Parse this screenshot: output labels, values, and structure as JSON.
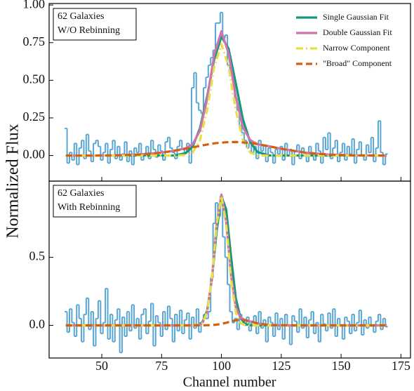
{
  "chart_data": [
    {
      "type": "line",
      "ylabel": "Normalized Flux",
      "annotation": [
        "62 Galaxies",
        "W/O Rebinning"
      ],
      "xlim": [
        28,
        179
      ],
      "ylim": [
        -0.17,
        1.01
      ],
      "xticks": [
        50,
        75,
        100,
        125,
        150,
        175
      ],
      "yticks": [
        {
          "value": 0,
          "label": "0.00"
        },
        0.25,
        {
          "value": 0.5,
          "label": "0.50"
        },
        0.75,
        {
          "value": 1,
          "label": "1.00"
        }
      ],
      "legend": "upper right",
      "histogram": {
        "color": "#5aa6d2",
        "x": [
          35,
          36,
          37,
          38,
          39,
          40,
          41,
          42,
          43,
          44,
          45,
          46,
          47,
          48,
          49,
          50,
          51,
          52,
          53,
          54,
          55,
          56,
          57,
          58,
          59,
          60,
          61,
          62,
          63,
          64,
          65,
          66,
          67,
          68,
          69,
          70,
          71,
          72,
          73,
          74,
          75,
          76,
          77,
          78,
          79,
          80,
          81,
          82,
          83,
          84,
          85,
          86,
          87,
          88,
          89,
          90,
          91,
          92,
          93,
          94,
          95,
          96,
          97,
          98,
          99,
          100,
          101,
          102,
          103,
          104,
          105,
          106,
          107,
          108,
          109,
          110,
          111,
          112,
          113,
          114,
          115,
          116,
          117,
          118,
          119,
          120,
          121,
          122,
          123,
          124,
          125,
          126,
          127,
          128,
          129,
          130,
          131,
          132,
          133,
          134,
          135,
          136,
          137,
          138,
          139,
          140,
          141,
          142,
          143,
          144,
          145,
          146,
          147,
          148,
          149,
          150,
          151,
          152,
          153,
          154,
          155,
          156,
          157,
          158,
          159,
          160,
          161,
          162,
          163,
          164,
          165,
          166,
          167,
          168,
          169
        ],
        "values": [
          0.18,
          -0.05,
          0.02,
          -0.03,
          0.08,
          -0.06,
          0.05,
          0.1,
          -0.02,
          0.14,
          0.03,
          -0.04,
          0.08,
          0.1,
          0.06,
          -0.03,
          0.02,
          0.08,
          -0.05,
          0.04,
          0.1,
          -0.02,
          0.06,
          -0.03,
          0.01,
          0.09,
          -0.04,
          0.03,
          -0.06,
          0.05,
          0.02,
          0.08,
          -0.03,
          0.0,
          0.06,
          -0.02,
          0.1,
          0.04,
          -0.01,
          0.07,
          0.03,
          -0.03,
          0.09,
          0.12,
          0.05,
          0.02,
          -0.02,
          0.06,
          0.1,
          0.04,
          0.02,
          0.08,
          -0.05,
          0.45,
          0.55,
          0.35,
          0.3,
          0.28,
          0.45,
          0.52,
          0.6,
          0.65,
          0.7,
          0.88,
          0.88,
          0.95,
          0.78,
          0.8,
          0.6,
          0.55,
          0.5,
          0.38,
          0.3,
          0.2,
          0.15,
          0.1,
          0.05,
          0.08,
          0.02,
          0.06,
          -0.02,
          0.1,
          0.03,
          0.07,
          -0.04,
          0.05,
          0.02,
          -0.05,
          0.04,
          0.01,
          0.06,
          -0.03,
          0.08,
          0.0,
          0.04,
          -0.06,
          0.03,
          0.07,
          -0.02,
          0.05,
          0.02,
          -0.04,
          0.06,
          0.01,
          -0.03,
          0.08,
          0.03,
          -0.05,
          0.12,
          0.04,
          0.15,
          -0.02,
          0.05,
          0.1,
          -0.04,
          0.02,
          0.08,
          -0.03,
          0.06,
          0.01,
          0.11,
          -0.05,
          0.04,
          0.09,
          0.0,
          -0.03,
          0.07,
          0.02,
          0.12,
          -0.04,
          0.05,
          0.23,
          0.02,
          -0.06,
          0.01
        ]
      },
      "x": [
        35,
        45,
        55,
        65,
        75,
        80,
        85,
        88,
        91,
        94,
        97,
        100,
        103,
        106,
        109,
        112,
        115,
        120,
        125,
        135,
        145,
        155,
        169
      ],
      "series": [
        {
          "name": "Single Gaussian Fit",
          "color": "#14997a",
          "style": "solid",
          "values": [
            0,
            0,
            0,
            0,
            0,
            0,
            0.015,
            0.06,
            0.18,
            0.39,
            0.64,
            0.79,
            0.71,
            0.48,
            0.24,
            0.09,
            0.024,
            0,
            0,
            0,
            0,
            0,
            0
          ]
        },
        {
          "name": "Double Gaussian Fit",
          "color": "#cf72b0",
          "style": "solid",
          "values": [
            0,
            0,
            0.001,
            0.006,
            0.019,
            0.031,
            0.048,
            0.075,
            0.164,
            0.373,
            0.671,
            0.826,
            0.679,
            0.39,
            0.187,
            0.103,
            0.076,
            0.061,
            0.045,
            0.019,
            0.006,
            0.001,
            0
          ]
        },
        {
          "name": "Narrow Component",
          "color": "#e6e045",
          "style": "dashdot",
          "values": [
            0,
            0,
            0,
            0,
            0,
            0,
            0.003,
            0.02,
            0.1,
            0.3,
            0.59,
            0.74,
            0.59,
            0.3,
            0.1,
            0.02,
            0,
            0,
            0,
            0,
            0,
            0,
            0
          ]
        },
        {
          "name": "\"Broad\" Component",
          "color": "#d5600c",
          "style": "dashed",
          "values": [
            0,
            0,
            0.001,
            0.006,
            0.019,
            0.031,
            0.045,
            0.055,
            0.064,
            0.073,
            0.081,
            0.086,
            0.089,
            0.09,
            0.087,
            0.083,
            0.076,
            0.061,
            0.045,
            0.019,
            0.006,
            0.001,
            0
          ]
        }
      ]
    },
    {
      "type": "line",
      "xlabel": "Channel number",
      "annotation": [
        "62 Galaxies",
        "With Rebinning"
      ],
      "xlim": [
        28,
        179
      ],
      "ylim": [
        -0.24,
        1.06
      ],
      "xticks": [
        50,
        75,
        100,
        125,
        150,
        175
      ],
      "yticks": [
        {
          "value": 0,
          "label": "0.0"
        },
        0.5
      ],
      "histogram": {
        "color": "#5aa6d2",
        "x": [
          35,
          36,
          37,
          38,
          39,
          40,
          41,
          42,
          43,
          44,
          45,
          46,
          47,
          48,
          49,
          50,
          51,
          52,
          53,
          54,
          55,
          56,
          57,
          58,
          59,
          60,
          61,
          62,
          63,
          64,
          65,
          66,
          67,
          68,
          69,
          70,
          71,
          72,
          73,
          74,
          75,
          76,
          77,
          78,
          79,
          80,
          81,
          82,
          83,
          84,
          85,
          86,
          87,
          88,
          89,
          90,
          91,
          92,
          93,
          94,
          95,
          96,
          97,
          98,
          99,
          100,
          101,
          102,
          103,
          104,
          105,
          106,
          107,
          108,
          109,
          110,
          111,
          112,
          113,
          114,
          115,
          116,
          117,
          118,
          119,
          120,
          121,
          122,
          123,
          124,
          125,
          126,
          127,
          128,
          129,
          130,
          131,
          132,
          133,
          134,
          135,
          136,
          137,
          138,
          139,
          140,
          141,
          142,
          143,
          144,
          145,
          146,
          147,
          148,
          149,
          150,
          151,
          152,
          153,
          154,
          155,
          156,
          157,
          158,
          159,
          160,
          161,
          162,
          163,
          164,
          165,
          166,
          167,
          168,
          169
        ],
        "values": [
          0.1,
          -0.05,
          0.12,
          0.02,
          -0.08,
          0.15,
          0.05,
          -0.12,
          0.08,
          0.2,
          -0.03,
          0.1,
          -0.15,
          0.05,
          0.18,
          -0.06,
          0.02,
          0.27,
          -0.1,
          0.08,
          -0.12,
          0.04,
          0.12,
          -0.2,
          0.06,
          -0.08,
          0.1,
          -0.04,
          0.15,
          -0.02,
          0.05,
          -0.1,
          0.08,
          0.12,
          -0.06,
          0.03,
          0.16,
          -0.15,
          0.07,
          0.02,
          -0.08,
          0.1,
          -0.03,
          0.14,
          0.05,
          -0.12,
          0.08,
          -0.04,
          0.11,
          -0.06,
          0.04,
          0.09,
          -0.1,
          0.06,
          -0.02,
          0.12,
          -0.05,
          0.02,
          0.08,
          0.05,
          0.1,
          0.35,
          0.75,
          0.9,
          0.8,
          0.95,
          0.65,
          0.5,
          0.3,
          0.1,
          0.02,
          0.05,
          -0.03,
          0.08,
          0.04,
          0.0,
          0.06,
          -0.04,
          0.03,
          0.07,
          -0.06,
          0.1,
          -0.02,
          0.04,
          -0.12,
          0.06,
          0.02,
          -0.08,
          0.09,
          -0.03,
          0.05,
          -0.1,
          0.08,
          0.0,
          -0.14,
          0.07,
          0.03,
          -0.05,
          0.12,
          -0.02,
          0.06,
          -0.09,
          0.04,
          0.1,
          -0.06,
          0.02,
          -0.12,
          0.08,
          0.01,
          -0.04,
          0.09,
          -0.02,
          0.12,
          -0.08,
          0.05,
          0.0,
          -0.1,
          0.06,
          0.03,
          -0.06,
          0.08,
          -0.04,
          0.02,
          0.11,
          -0.07,
          0.04,
          -0.02,
          0.06,
          0.0,
          -0.05,
          0.03,
          0.08,
          -0.03,
          0.05,
          -0.01
        ]
      },
      "x": [
        35,
        50,
        65,
        80,
        88,
        90,
        92,
        94,
        96,
        98,
        100,
        102,
        104,
        106,
        108,
        110,
        112,
        115,
        120,
        130,
        150,
        169
      ],
      "series": [
        {
          "color": "#14997a",
          "style": "solid",
          "values": [
            0,
            0,
            0,
            0,
            0,
            0.003,
            0.022,
            0.107,
            0.336,
            0.69,
            0.95,
            0.85,
            0.51,
            0.2,
            0.053,
            0.009,
            0.001,
            0,
            0,
            0,
            0,
            0
          ]
        },
        {
          "color": "#cf72b0",
          "style": "solid",
          "values": [
            0,
            0,
            0,
            0,
            0,
            0.002,
            0.016,
            0.097,
            0.342,
            0.745,
            0.961,
            0.759,
            0.369,
            0.133,
            0.056,
            0.039,
            0.029,
            0.015,
            0.002,
            0,
            0,
            0
          ]
        },
        {
          "color": "#e6e045",
          "style": "dashdot",
          "values": [
            0,
            0,
            0,
            0,
            0,
            0.002,
            0.016,
            0.096,
            0.34,
            0.74,
            0.95,
            0.74,
            0.34,
            0.096,
            0.016,
            0.002,
            0,
            0,
            0,
            0,
            0,
            0
          ]
        },
        {
          "color": "#d5600c",
          "style": "dashed",
          "values": [
            0,
            0,
            0,
            0,
            0,
            0,
            0.0002,
            0.0008,
            0.002,
            0.005,
            0.011,
            0.019,
            0.029,
            0.037,
            0.04,
            0.037,
            0.029,
            0.015,
            0.002,
            0,
            0,
            0
          ]
        }
      ]
    }
  ]
}
